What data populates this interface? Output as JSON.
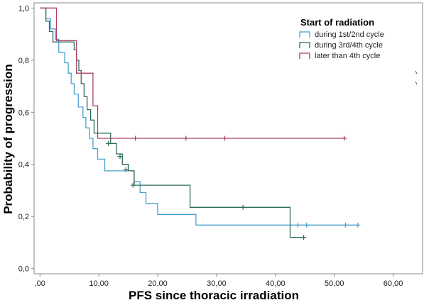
{
  "chart_data": {
    "type": "line",
    "title": "",
    "xlabel": "PFS since thoracic irradiation",
    "ylabel": "Probability of progression",
    "xlim": [
      -1,
      65
    ],
    "ylim": [
      -0.02,
      1.02
    ],
    "x_ticks": [
      0,
      10,
      20,
      30,
      40,
      50,
      60
    ],
    "x_tick_labels": [
      ",00",
      "10,00",
      "20,00",
      "30,00",
      "40,00",
      "50,00",
      "60,00"
    ],
    "y_ticks": [
      0,
      0.2,
      0.4,
      0.6,
      0.8,
      1.0
    ],
    "y_tick_labels": [
      "0,0",
      "0,2",
      "0,4",
      "0,6",
      "0,8",
      "1,0"
    ],
    "grid": false,
    "legend": {
      "title": "Start of radiation",
      "position": "top-right"
    },
    "series": [
      {
        "name": "during 1st/2nd cycle",
        "color": "#4a9fd1",
        "steps": [
          [
            0,
            1.0
          ],
          [
            1.0,
            0.96
          ],
          [
            1.8,
            0.92
          ],
          [
            2.6,
            0.88
          ],
          [
            3.2,
            0.83
          ],
          [
            4.2,
            0.79
          ],
          [
            4.8,
            0.75
          ],
          [
            5.3,
            0.71
          ],
          [
            5.8,
            0.67
          ],
          [
            6.5,
            0.62
          ],
          [
            7.3,
            0.58
          ],
          [
            7.8,
            0.54
          ],
          [
            8.4,
            0.5
          ],
          [
            9.0,
            0.46
          ],
          [
            9.8,
            0.42
          ],
          [
            11.0,
            0.375
          ],
          [
            16.0,
            0.333
          ],
          [
            17.0,
            0.292
          ],
          [
            18.0,
            0.25
          ],
          [
            20.0,
            0.208
          ],
          [
            26.5,
            0.167
          ],
          [
            54.0,
            0.167
          ]
        ],
        "censored": [
          [
            43.8,
            0.167
          ],
          [
            45.3,
            0.167
          ],
          [
            51.9,
            0.167
          ],
          [
            54.0,
            0.167
          ]
        ]
      },
      {
        "name": "during 3rd/4th cycle",
        "color": "#2e6b5a",
        "steps": [
          [
            0,
            1.0
          ],
          [
            1.0,
            0.95
          ],
          [
            1.6,
            0.91
          ],
          [
            2.2,
            0.87
          ],
          [
            5.8,
            0.84
          ],
          [
            6.2,
            0.8
          ],
          [
            6.6,
            0.76
          ],
          [
            7.0,
            0.71
          ],
          [
            7.5,
            0.66
          ],
          [
            8.0,
            0.61
          ],
          [
            8.6,
            0.57
          ],
          [
            9.2,
            0.52
          ],
          [
            12.0,
            0.48
          ],
          [
            13.0,
            0.44
          ],
          [
            14.0,
            0.4
          ],
          [
            15.0,
            0.375
          ],
          [
            16.0,
            0.32
          ],
          [
            25.5,
            0.235
          ],
          [
            42.5,
            0.12
          ],
          [
            45.0,
            0.12
          ]
        ],
        "censored": [
          [
            11.6,
            0.48
          ],
          [
            13.6,
            0.43
          ],
          [
            14.6,
            0.38
          ],
          [
            15.8,
            0.32
          ],
          [
            34.5,
            0.235
          ],
          [
            44.8,
            0.12
          ]
        ]
      },
      {
        "name": "later than 4th cycle",
        "color": "#a8416a",
        "steps": [
          [
            0,
            1.0
          ],
          [
            2.8,
            0.875
          ],
          [
            6.2,
            0.75
          ],
          [
            9.0,
            0.625
          ],
          [
            9.8,
            0.5
          ],
          [
            52.0,
            0.5
          ]
        ],
        "censored": [
          [
            16.2,
            0.5
          ],
          [
            24.8,
            0.5
          ],
          [
            31.4,
            0.5
          ],
          [
            51.7,
            0.5
          ]
        ]
      }
    ]
  }
}
